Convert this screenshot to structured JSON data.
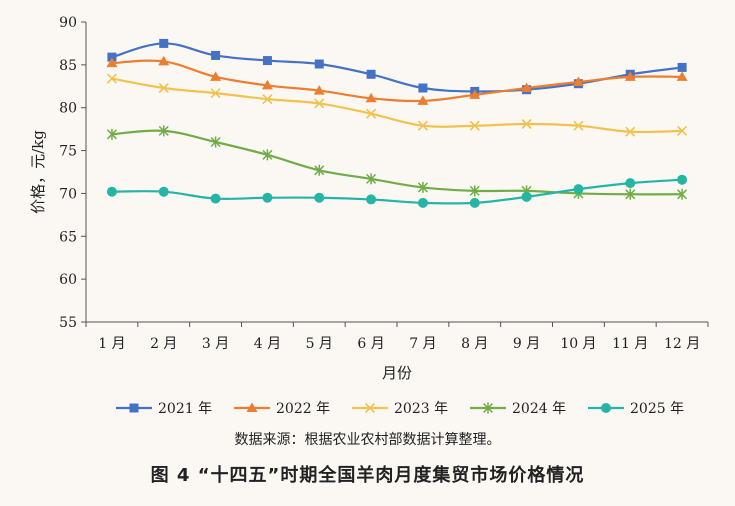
{
  "chart_data": {
    "type": "line",
    "title": "图 4 “十四五”时期全国羊肉月度集贸市场价格情况",
    "xlabel": "月份",
    "ylabel": "价格，元/kg",
    "categories": [
      "1 月",
      "2 月",
      "3 月",
      "4 月",
      "5 月",
      "6 月",
      "7 月",
      "8 月",
      "9 月",
      "10 月",
      "11 月",
      "12 月"
    ],
    "ylim": [
      55,
      90
    ],
    "yticks": [
      55,
      60,
      65,
      70,
      75,
      80,
      85,
      90
    ],
    "grid": false,
    "legend": "bottom",
    "series": [
      {
        "name": "2021 年",
        "color": "#4472c4",
        "marker": "square",
        "values": [
          85.9,
          87.5,
          86.1,
          85.5,
          85.1,
          83.9,
          82.3,
          81.9,
          82.1,
          82.8,
          83.9,
          84.7
        ]
      },
      {
        "name": "2022 年",
        "color": "#ed7d31",
        "marker": "triangle",
        "values": [
          85.2,
          85.4,
          83.6,
          82.6,
          82.0,
          81.1,
          80.8,
          81.5,
          82.3,
          83.0,
          83.6,
          83.6
        ]
      },
      {
        "name": "2023 年",
        "color": "#f2c24f",
        "marker": "x",
        "values": [
          83.4,
          82.3,
          81.7,
          81.0,
          80.5,
          79.3,
          77.9,
          77.9,
          78.1,
          77.9,
          77.2,
          77.3
        ]
      },
      {
        "name": "2024 年",
        "color": "#70ad47",
        "marker": "asterisk",
        "values": [
          76.9,
          77.3,
          76.0,
          74.5,
          72.7,
          71.7,
          70.7,
          70.3,
          70.3,
          70.0,
          69.9,
          69.9
        ]
      },
      {
        "name": "2025 年",
        "color": "#26b5a5",
        "marker": "circle",
        "values": [
          70.2,
          70.2,
          69.4,
          69.5,
          69.5,
          69.3,
          68.9,
          68.9,
          69.6,
          70.5,
          71.2,
          71.6
        ]
      }
    ]
  },
  "source_note": "数据来源：根据农业农村部数据计算整理。"
}
